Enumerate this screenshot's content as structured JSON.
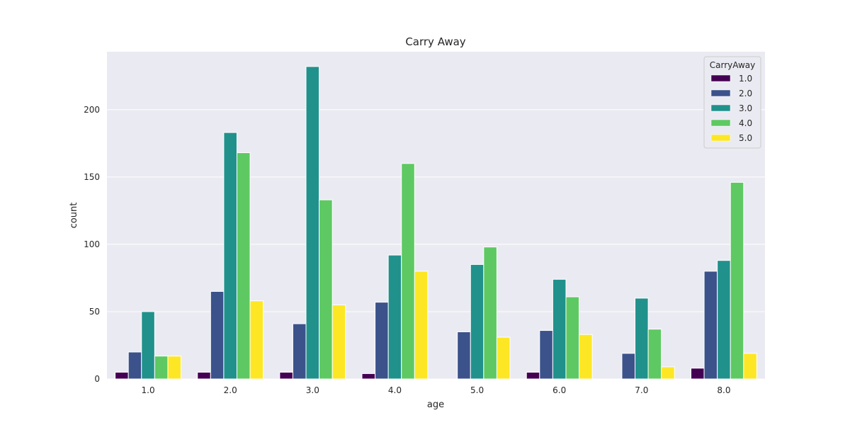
{
  "chart_data": {
    "type": "bar",
    "title": "Carry Away",
    "xlabel": "age",
    "ylabel": "count",
    "categories": [
      "1.0",
      "2.0",
      "3.0",
      "4.0",
      "5.0",
      "6.0",
      "7.0",
      "8.0"
    ],
    "ylim": [
      0,
      243
    ],
    "yticks": [
      0,
      50,
      100,
      150,
      200
    ],
    "grid": true,
    "legend": {
      "title": "CarryAway",
      "placement": "top-right"
    },
    "series": [
      {
        "name": "1.0",
        "color": "#440154",
        "values": [
          5,
          5,
          5,
          4,
          null,
          5,
          null,
          8
        ]
      },
      {
        "name": "2.0",
        "color": "#3b528b",
        "values": [
          20,
          65,
          41,
          57,
          35,
          36,
          19,
          80
        ]
      },
      {
        "name": "3.0",
        "color": "#21918c",
        "values": [
          50,
          183,
          232,
          92,
          85,
          74,
          60,
          88
        ]
      },
      {
        "name": "4.0",
        "color": "#5ec962",
        "values": [
          17,
          168,
          133,
          160,
          98,
          61,
          37,
          146
        ]
      },
      {
        "name": "5.0",
        "color": "#fde725",
        "values": [
          17,
          58,
          55,
          80,
          31,
          33,
          9,
          19
        ]
      }
    ]
  }
}
